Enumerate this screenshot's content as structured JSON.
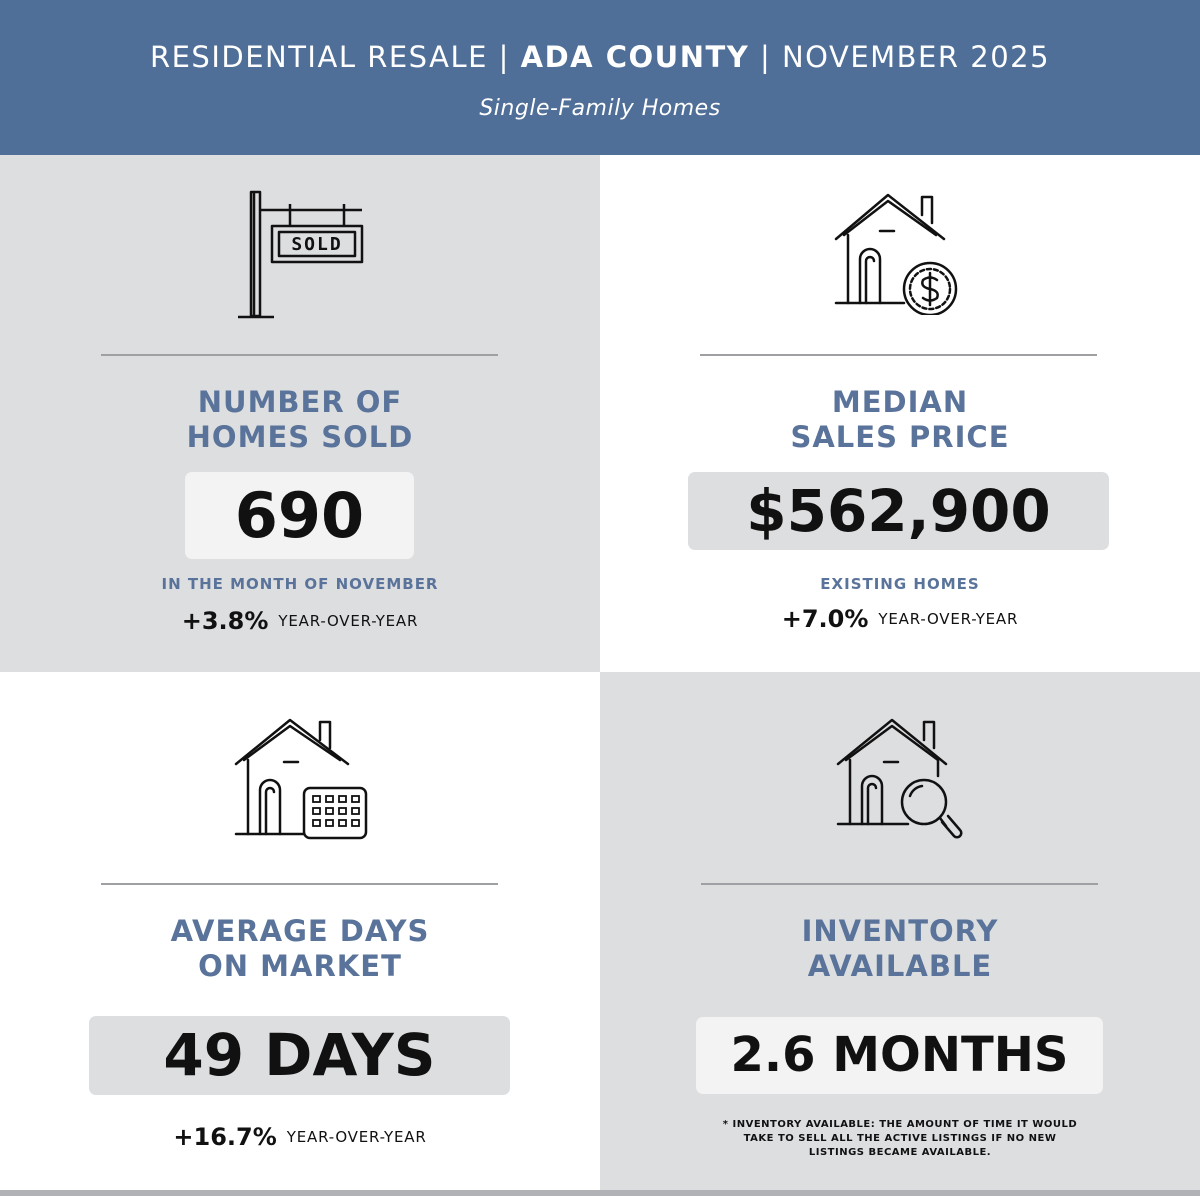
{
  "header": {
    "title_part1": "RESIDENTIAL RESALE",
    "sep1": "|",
    "title_part2": "ADA COUNTY",
    "sep2": "|",
    "title_part3": "NOVEMBER 2025",
    "subtitle": "Single-Family Homes"
  },
  "colors": {
    "header_bg": "#4f6e98",
    "label_blue": "#5a739a",
    "panel_gray": "#dddee0"
  },
  "stats": {
    "homes_sold": {
      "icon": "sold-sign-icon",
      "sign_text": "SOLD",
      "label_line1": "NUMBER OF",
      "label_line2": "HOMES SOLD",
      "value": "690",
      "note": "IN THE MONTH OF NOVEMBER",
      "yoy_pct": "+3.8%",
      "yoy_text": "YEAR-OVER-YEAR"
    },
    "median_price": {
      "icon": "house-dollar-icon",
      "label_line1": "MEDIAN",
      "label_line2": "SALES PRICE",
      "value": "$562,900",
      "note": "EXISTING HOMES",
      "yoy_pct": "+7.0%",
      "yoy_text": "YEAR-OVER-YEAR"
    },
    "days_on_market": {
      "icon": "house-calendar-icon",
      "label_line1": "AVERAGE DAYS",
      "label_line2": "ON MARKET",
      "value": "49 DAYS",
      "yoy_pct": "+16.7%",
      "yoy_text": "YEAR-OVER-YEAR"
    },
    "inventory": {
      "icon": "house-search-icon",
      "label_line1": "INVENTORY",
      "label_line2": "AVAILABLE",
      "value": "2.6 MONTHS",
      "footnote_line1": "* INVENTORY AVAILABLE: THE AMOUNT OF TIME IT WOULD",
      "footnote_line2": "TAKE TO SELL ALL THE ACTIVE LISTINGS IF NO NEW",
      "footnote_line3": "LISTINGS BECAME AVAILABLE."
    }
  }
}
